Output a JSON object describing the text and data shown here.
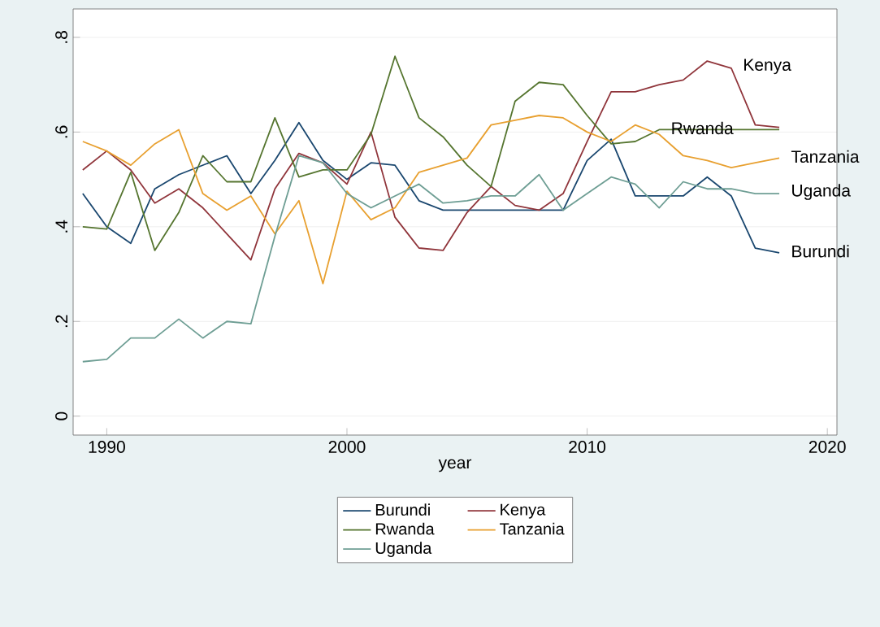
{
  "chart_data": {
    "type": "line",
    "xlabel": "year",
    "x": [
      1989,
      1990,
      1991,
      1992,
      1993,
      1994,
      1995,
      1996,
      1997,
      1998,
      1999,
      2000,
      2001,
      2002,
      2003,
      2004,
      2005,
      2006,
      2007,
      2008,
      2009,
      2010,
      2011,
      2012,
      2013,
      2014,
      2015,
      2016,
      2017,
      2018
    ],
    "series": [
      {
        "name": "Burundi",
        "color": "#1a476f",
        "values": [
          0.47,
          0.4,
          0.365,
          0.48,
          0.51,
          0.53,
          0.55,
          0.47,
          0.54,
          0.62,
          0.54,
          0.5,
          0.535,
          0.53,
          0.455,
          0.435,
          0.435,
          0.435,
          0.435,
          0.435,
          0.435,
          0.54,
          0.585,
          0.465,
          0.465,
          0.465,
          0.505,
          0.465,
          0.355,
          0.345
        ]
      },
      {
        "name": "Kenya",
        "color": "#90353b",
        "values": [
          0.52,
          0.56,
          0.52,
          0.45,
          0.48,
          0.44,
          0.385,
          0.33,
          0.48,
          0.555,
          0.535,
          0.49,
          0.6,
          0.42,
          0.355,
          0.35,
          0.43,
          0.485,
          0.445,
          0.435,
          0.47,
          0.58,
          0.685,
          0.685,
          0.7,
          0.71,
          0.75,
          0.735,
          0.615,
          0.61
        ]
      },
      {
        "name": "Rwanda",
        "color": "#55752f",
        "values": [
          0.4,
          0.395,
          0.515,
          0.35,
          0.43,
          0.55,
          0.495,
          0.495,
          0.63,
          0.505,
          0.52,
          0.52,
          0.595,
          0.76,
          0.63,
          0.59,
          0.53,
          0.485,
          0.665,
          0.705,
          0.7,
          0.635,
          0.575,
          0.58,
          0.605,
          0.605,
          0.605,
          0.605,
          0.605,
          0.605
        ]
      },
      {
        "name": "Tanzania",
        "color": "#e8a030",
        "values": [
          0.58,
          0.56,
          0.53,
          0.575,
          0.605,
          0.47,
          0.435,
          0.465,
          0.385,
          0.455,
          0.28,
          0.475,
          0.415,
          0.44,
          0.515,
          0.53,
          0.545,
          0.615,
          0.625,
          0.635,
          0.63,
          0.6,
          0.58,
          0.615,
          0.595,
          0.55,
          0.54,
          0.525,
          0.535,
          0.545
        ]
      },
      {
        "name": "Uganda",
        "color": "#6e9e94",
        "values": [
          0.115,
          0.12,
          0.165,
          0.165,
          0.205,
          0.165,
          0.2,
          0.195,
          0.38,
          0.55,
          0.535,
          0.47,
          0.44,
          0.465,
          0.49,
          0.45,
          0.455,
          0.465,
          0.465,
          0.51,
          0.435,
          0.47,
          0.505,
          0.49,
          0.44,
          0.495,
          0.48,
          0.48,
          0.47,
          0.47
        ]
      }
    ],
    "annotations": [
      {
        "text": "Kenya",
        "x": 2016,
        "y": 0.735
      },
      {
        "text": "Rwanda",
        "x": 2013,
        "y": 0.605
      },
      {
        "text": "Tanzania",
        "x": 2018,
        "y": 0.545
      },
      {
        "text": "Uganda",
        "x": 2018,
        "y": 0.47
      },
      {
        "text": "Burundi",
        "x": 2018,
        "y": 0.345
      }
    ],
    "xlim": [
      1988.6,
      2020.4
    ],
    "ylim": [
      -0.04,
      0.86
    ],
    "xticks": [
      1990,
      2000,
      2010,
      2020
    ],
    "yticks": [
      0,
      {
        "value": 0.2,
        "label": ".2"
      },
      {
        "value": 0.4,
        "label": ".4"
      },
      {
        "value": 0.6,
        "label": ".6"
      },
      {
        "value": 0.8,
        "label": ".8"
      }
    ],
    "grid": "y",
    "legend": "bottom"
  }
}
